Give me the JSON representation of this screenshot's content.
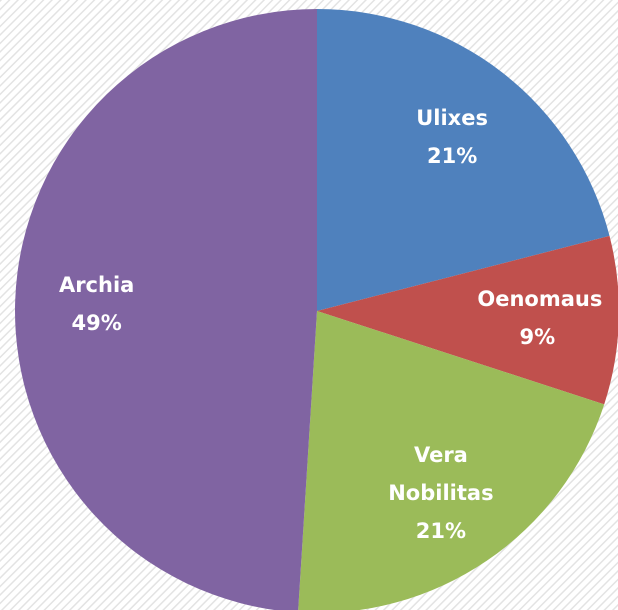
{
  "chart_data": {
    "type": "pie",
    "categories": [
      "Ulixes",
      "Oenomaus",
      "Vera Nobilitas",
      "Archia"
    ],
    "values": [
      21,
      9,
      21,
      49
    ],
    "value_labels": [
      "21%",
      "9%",
      "21%",
      "49%"
    ],
    "colors": [
      "#4f81bd",
      "#c0504d",
      "#9bbb59",
      "#8064a2"
    ]
  }
}
